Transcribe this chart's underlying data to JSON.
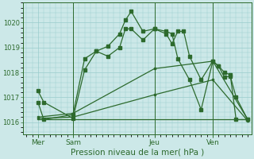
{
  "bg_color": "#cce8e8",
  "grid_color": "#99cccc",
  "line_color": "#2d6a2d",
  "title": "Pression niveau de la mer( hPa )",
  "ylim": [
    1015.5,
    1020.8
  ],
  "yticks": [
    1016,
    1017,
    1018,
    1019,
    1020
  ],
  "xlim": [
    -0.3,
    19.3
  ],
  "day_ticks": [
    1,
    4,
    11,
    16
  ],
  "day_labels": [
    "Mer",
    "Sam",
    "Jeu",
    "Ven"
  ],
  "vlines": [
    4,
    11,
    16
  ],
  "line1_x": [
    1,
    1.5,
    4,
    5,
    6,
    7,
    8,
    8.5,
    9,
    10,
    11,
    12,
    12.5,
    13,
    13.5,
    14,
    15,
    16,
    16.5,
    17,
    17.5,
    18,
    19
  ],
  "line1_y": [
    1017.25,
    1016.8,
    1016.15,
    1018.1,
    1018.85,
    1019.05,
    1019.55,
    1020.1,
    1020.45,
    1019.65,
    1019.75,
    1019.55,
    1019.15,
    1019.65,
    1019.65,
    1018.65,
    1017.7,
    1018.45,
    1018.25,
    1017.8,
    1017.85,
    1017.0,
    1016.1
  ],
  "line2_x": [
    1,
    1.5,
    4,
    5,
    6,
    7,
    8,
    8.5,
    9,
    10,
    11,
    12,
    12.5,
    13,
    14,
    15,
    16,
    16.5,
    17,
    17.5,
    18,
    19
  ],
  "line2_y": [
    1016.8,
    1016.1,
    1016.3,
    1018.55,
    1018.85,
    1018.65,
    1019.0,
    1019.75,
    1019.75,
    1019.3,
    1019.75,
    1019.65,
    1019.55,
    1018.55,
    1017.7,
    1016.5,
    1018.45,
    1018.25,
    1018.0,
    1017.9,
    1016.1,
    1016.1
  ],
  "line3_x": [
    1,
    4,
    11,
    16,
    19
  ],
  "line3_y": [
    1016.2,
    1016.35,
    1018.15,
    1018.45,
    1016.1
  ],
  "line4_x": [
    1,
    4,
    11,
    16,
    19
  ],
  "line4_y": [
    1016.15,
    1016.2,
    1017.1,
    1017.7,
    1016.05
  ],
  "line5_x": [
    1,
    11,
    16,
    19
  ],
  "line5_y": [
    1016.1,
    1016.1,
    1016.1,
    1016.1
  ]
}
